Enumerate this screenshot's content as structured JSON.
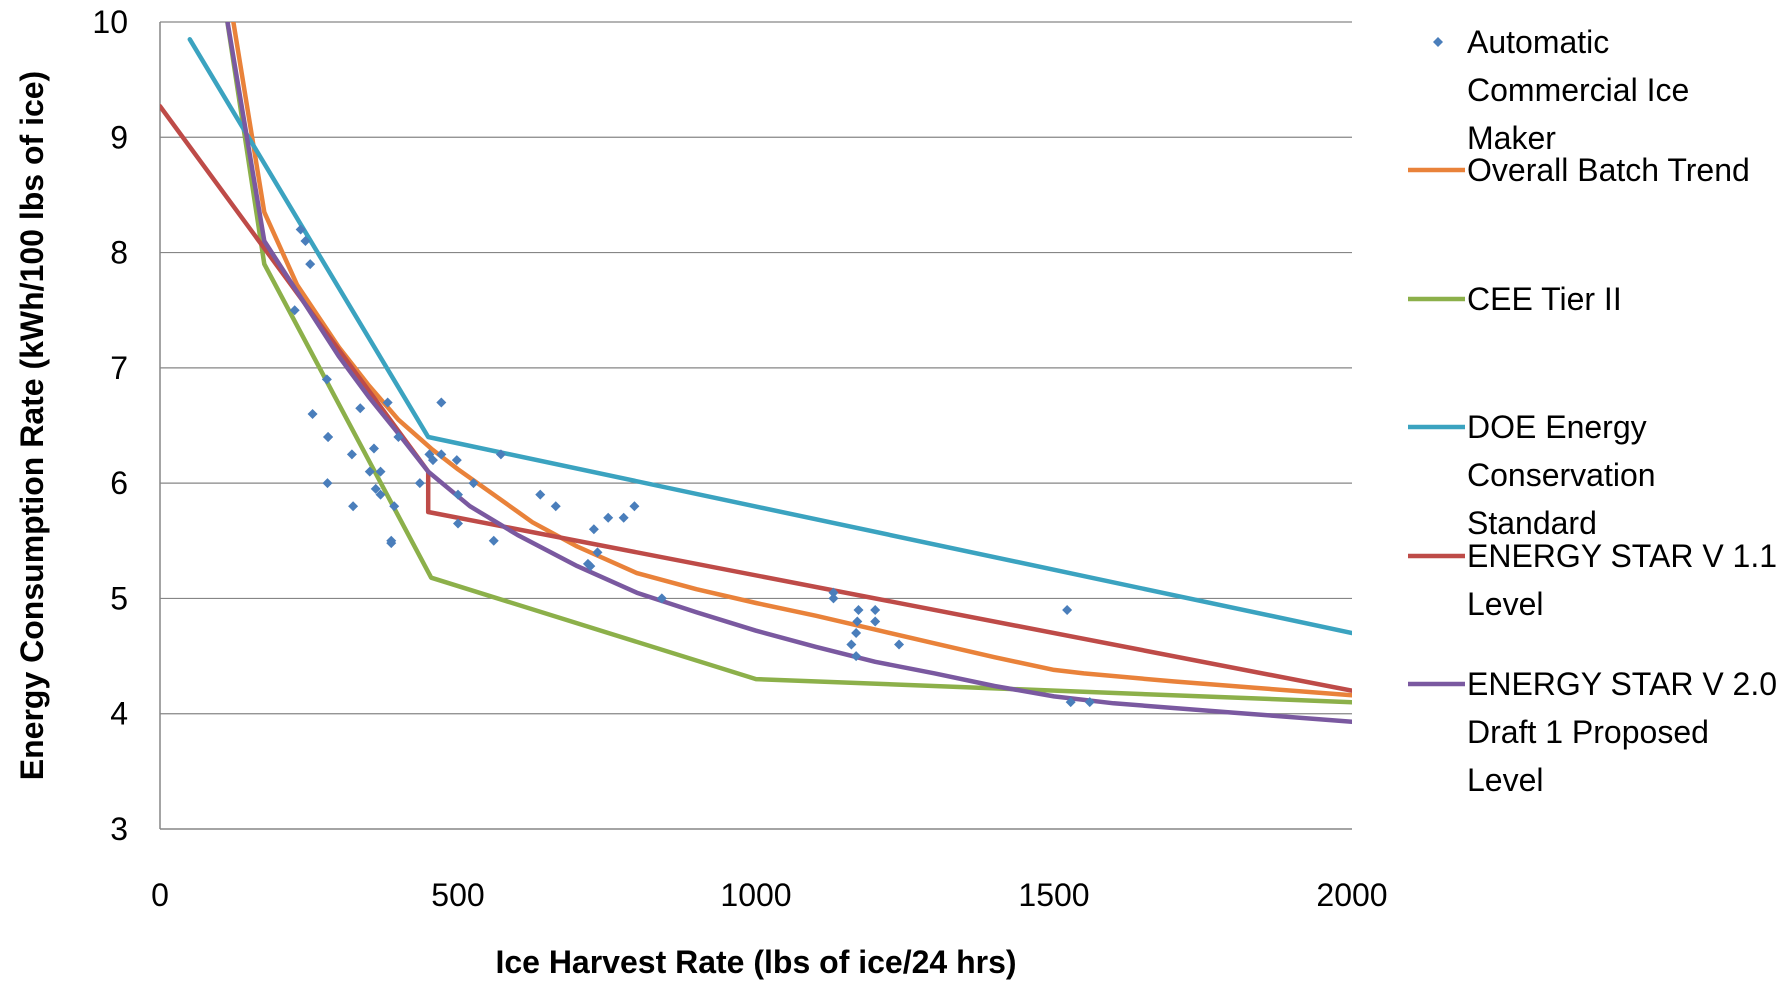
{
  "chart_data": {
    "type": "line",
    "title": "",
    "xlabel": "Ice Harvest Rate (lbs of ice/24 hrs)",
    "ylabel": "Energy Consumption Rate (kWh/100 lbs of ice)",
    "xlim": [
      0,
      2000
    ],
    "ylim": [
      3,
      10
    ],
    "xticks": [
      0,
      500,
      1000,
      1500,
      2000
    ],
    "yticks": [
      3,
      4,
      5,
      6,
      7,
      8,
      9,
      10
    ],
    "grid": "horizontal",
    "legend_position": "right",
    "series": [
      {
        "name": "Automatic Commercial Ice Maker",
        "kind": "scatter",
        "color": "#4a7ebb",
        "points": [
          [
            236,
            8.2
          ],
          [
            244,
            8.1
          ],
          [
            252,
            7.9
          ],
          [
            226,
            7.5
          ],
          [
            256,
            6.6
          ],
          [
            280,
            6.9
          ],
          [
            282,
            6.4
          ],
          [
            282,
            6.4
          ],
          [
            281,
            6.0
          ],
          [
            322,
            6.25
          ],
          [
            324,
            5.8
          ],
          [
            336,
            6.65
          ],
          [
            352,
            6.1
          ],
          [
            359,
            6.3
          ],
          [
            362,
            5.95
          ],
          [
            370,
            5.9
          ],
          [
            370,
            6.1
          ],
          [
            382,
            6.7
          ],
          [
            388,
            5.5
          ],
          [
            388,
            5.48
          ],
          [
            393,
            5.8
          ],
          [
            400,
            6.4
          ],
          [
            436,
            6.0
          ],
          [
            452,
            6.25
          ],
          [
            458,
            6.2
          ],
          [
            472,
            6.25
          ],
          [
            472,
            6.7
          ],
          [
            498,
            6.2
          ],
          [
            500,
            5.9
          ],
          [
            500,
            5.65
          ],
          [
            526,
            6.0
          ],
          [
            560,
            5.5
          ],
          [
            572,
            6.25
          ],
          [
            638,
            5.9
          ],
          [
            664,
            5.8
          ],
          [
            718,
            5.3
          ],
          [
            722,
            5.28
          ],
          [
            728,
            5.6
          ],
          [
            734,
            5.4
          ],
          [
            752,
            5.7
          ],
          [
            778,
            5.7
          ],
          [
            796,
            5.8
          ],
          [
            842,
            5.0
          ],
          [
            1130,
            5.05
          ],
          [
            1130,
            5.0
          ],
          [
            1160,
            4.6
          ],
          [
            1168,
            4.5
          ],
          [
            1168,
            4.7
          ],
          [
            1170,
            4.8
          ],
          [
            1172,
            4.9
          ],
          [
            1200,
            4.8
          ],
          [
            1200,
            4.9
          ],
          [
            1240,
            4.6
          ],
          [
            1522,
            4.9
          ],
          [
            1528,
            4.1
          ],
          [
            1560,
            4.1
          ]
        ]
      },
      {
        "name": "Overall Batch Trend",
        "kind": "line",
        "color": "#e9823a",
        "points": [
          [
            120,
            10.1
          ],
          [
            175,
            8.35
          ],
          [
            230,
            7.72
          ],
          [
            300,
            7.18
          ],
          [
            350,
            6.85
          ],
          [
            400,
            6.55
          ],
          [
            455,
            6.3
          ],
          [
            500,
            6.12
          ],
          [
            560,
            5.9
          ],
          [
            625,
            5.66
          ],
          [
            700,
            5.45
          ],
          [
            800,
            5.22
          ],
          [
            900,
            5.08
          ],
          [
            1000,
            4.96
          ],
          [
            1100,
            4.85
          ],
          [
            1200,
            4.73
          ],
          [
            1300,
            4.61
          ],
          [
            1400,
            4.49
          ],
          [
            1500,
            4.38
          ],
          [
            1550,
            4.35
          ],
          [
            1700,
            4.28
          ],
          [
            1850,
            4.22
          ],
          [
            2000,
            4.16
          ]
        ]
      },
      {
        "name": "CEE Tier II",
        "kind": "line",
        "color": "#8cb04a",
        "points": [
          [
            110,
            10.1
          ],
          [
            175,
            7.9
          ],
          [
            455,
            5.18
          ],
          [
            1000,
            4.3
          ],
          [
            2000,
            4.1
          ]
        ]
      },
      {
        "name": "DOE Energy Conservation Standard",
        "kind": "line",
        "color": "#3ba3c0",
        "points": [
          [
            50,
            9.85
          ],
          [
            450,
            6.4
          ],
          [
            2000,
            4.7
          ]
        ]
      },
      {
        "name": "ENERGY STAR V 1.1 Level",
        "kind": "line",
        "color": "#be4b48",
        "points": [
          [
            0,
            9.27
          ],
          [
            450,
            6.1
          ],
          [
            450,
            5.75
          ],
          [
            2000,
            4.2
          ]
        ]
      },
      {
        "name": "ENERGY STAR V 2.0 Draft 1 Proposed Level",
        "kind": "line",
        "color": "#7a59a0",
        "points": [
          [
            110,
            10.1
          ],
          [
            175,
            8.1
          ],
          [
            250,
            7.5
          ],
          [
            300,
            7.1
          ],
          [
            350,
            6.75
          ],
          [
            400,
            6.43
          ],
          [
            450,
            6.1
          ],
          [
            520,
            5.8
          ],
          [
            600,
            5.55
          ],
          [
            700,
            5.28
          ],
          [
            800,
            5.05
          ],
          [
            900,
            4.88
          ],
          [
            1000,
            4.72
          ],
          [
            1100,
            4.58
          ],
          [
            1200,
            4.45
          ],
          [
            1300,
            4.35
          ],
          [
            1400,
            4.24
          ],
          [
            1500,
            4.15
          ],
          [
            1600,
            4.09
          ],
          [
            1800,
            4.01
          ],
          [
            2000,
            3.93
          ]
        ]
      }
    ],
    "legend": [
      {
        "lines": [
          "Automatic",
          "Commercial Ice",
          "Maker"
        ],
        "symbol": "diamond",
        "color": "#4a7ebb"
      },
      {
        "lines": [
          "Overall Batch Trend"
        ],
        "symbol": "line",
        "color": "#e9823a"
      },
      {
        "lines": [
          "CEE Tier II"
        ],
        "symbol": "line",
        "color": "#8cb04a"
      },
      {
        "lines": [
          "DOE Energy",
          "Conservation",
          "Standard"
        ],
        "symbol": "line",
        "color": "#3ba3c0"
      },
      {
        "lines": [
          "ENERGY STAR V 1.1",
          "Level"
        ],
        "symbol": "line",
        "color": "#be4b48"
      },
      {
        "lines": [
          "ENERGY STAR V 2.0",
          "Draft 1 Proposed",
          "Level"
        ],
        "symbol": "line",
        "color": "#7a59a0"
      }
    ]
  }
}
